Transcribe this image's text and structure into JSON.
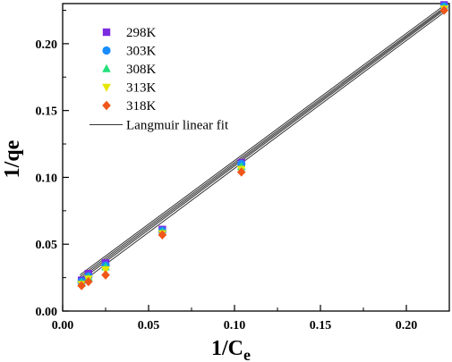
{
  "chart_data": {
    "type": "scatter",
    "xlabel_main": "1/C",
    "xlabel_sub": "e",
    "ylabel": "1/qe",
    "xlim": [
      0.0,
      0.225
    ],
    "ylim": [
      0.0,
      0.23
    ],
    "x_ticks": [
      0.0,
      0.05,
      0.1,
      0.15,
      0.2
    ],
    "x_tick_labels": [
      "0.00",
      "0.05",
      "0.10",
      "0.15",
      "0.20"
    ],
    "y_ticks": [
      0.0,
      0.05,
      0.1,
      0.15,
      0.2
    ],
    "y_tick_labels": [
      "0.00",
      "0.05",
      "0.10",
      "0.15",
      "0.20"
    ],
    "legend_position": "top-left",
    "fit_label": "Langmuir linear fit",
    "series": [
      {
        "name": "298K",
        "marker": "square",
        "color": "#7b2be0",
        "x": [
          0.011,
          0.015,
          0.025,
          0.058,
          0.104,
          0.222
        ],
        "y": [
          0.023,
          0.028,
          0.036,
          0.061,
          0.111,
          0.229
        ],
        "fit": [
          0.0175,
          0.951
        ]
      },
      {
        "name": "303K",
        "marker": "circle",
        "color": "#1a8cff",
        "x": [
          0.011,
          0.015,
          0.025,
          0.058,
          0.104,
          0.222
        ],
        "y": [
          0.022,
          0.026,
          0.034,
          0.06,
          0.11,
          0.228
        ],
        "fit": [
          0.016,
          0.951
        ]
      },
      {
        "name": "308K",
        "marker": "triangle-up",
        "color": "#22e07a",
        "x": [
          0.011,
          0.015,
          0.025,
          0.058,
          0.104,
          0.222
        ],
        "y": [
          0.021,
          0.025,
          0.033,
          0.059,
          0.108,
          0.227
        ],
        "fit": [
          0.0145,
          0.953
        ]
      },
      {
        "name": "313K",
        "marker": "triangle-down",
        "color": "#e6e600",
        "x": [
          0.011,
          0.015,
          0.025,
          0.058,
          0.104,
          0.222
        ],
        "y": [
          0.02,
          0.024,
          0.031,
          0.058,
          0.106,
          0.226
        ],
        "fit": [
          0.013,
          0.955
        ]
      },
      {
        "name": "318K",
        "marker": "diamond",
        "color": "#f0561a",
        "x": [
          0.011,
          0.015,
          0.025,
          0.058,
          0.104,
          0.222
        ],
        "y": [
          0.019,
          0.022,
          0.027,
          0.057,
          0.104,
          0.225
        ],
        "fit": [
          0.011,
          0.957
        ]
      }
    ]
  }
}
